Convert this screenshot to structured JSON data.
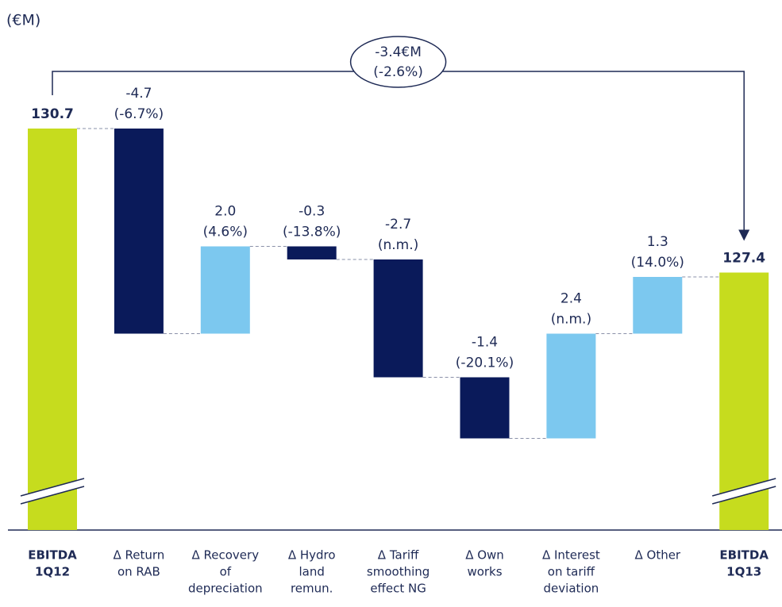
{
  "chart_data": {
    "type": "waterfall",
    "unit_label": "(€M)",
    "categories": [
      [
        "EBITDA",
        "1Q12"
      ],
      [
        "Δ Return",
        "on RAB"
      ],
      [
        "Δ Recovery",
        "of",
        "depreciation"
      ],
      [
        "Δ Hydro",
        "land",
        "remun."
      ],
      [
        "Δ Tariff",
        "smoothing",
        "effect NG"
      ],
      [
        "Δ Own",
        "works"
      ],
      [
        "Δ Interest",
        "on tariff",
        "deviation"
      ],
      [
        "Δ Other"
      ],
      [
        "EBITDA",
        "1Q13"
      ]
    ],
    "measures": [
      "total",
      "relative",
      "relative",
      "relative",
      "relative",
      "relative",
      "relative",
      "relative",
      "total"
    ],
    "values": [
      130.7,
      -4.7,
      2.0,
      -0.3,
      -2.7,
      -1.4,
      2.4,
      1.3,
      127.4
    ],
    "value_labels": [
      "130.7",
      "-4.7",
      "2.0",
      "-0.3",
      "-2.7",
      "-1.4",
      "2.4",
      "1.3",
      "127.4"
    ],
    "pct_labels": [
      null,
      "(-6.7%)",
      "(4.6%)",
      "(-13.8%)",
      "(n.m.)",
      "(-20.1%)",
      "(n.m.)",
      "(14.0%)",
      null
    ],
    "change_label": "-3.4€M",
    "change_pct": "(-2.6%)",
    "total_color": "#c6dc1e",
    "increase_color": "#7cc8ef",
    "decrease_color": "#0a1a5a",
    "ylim": [
      121.5,
      132
    ]
  }
}
